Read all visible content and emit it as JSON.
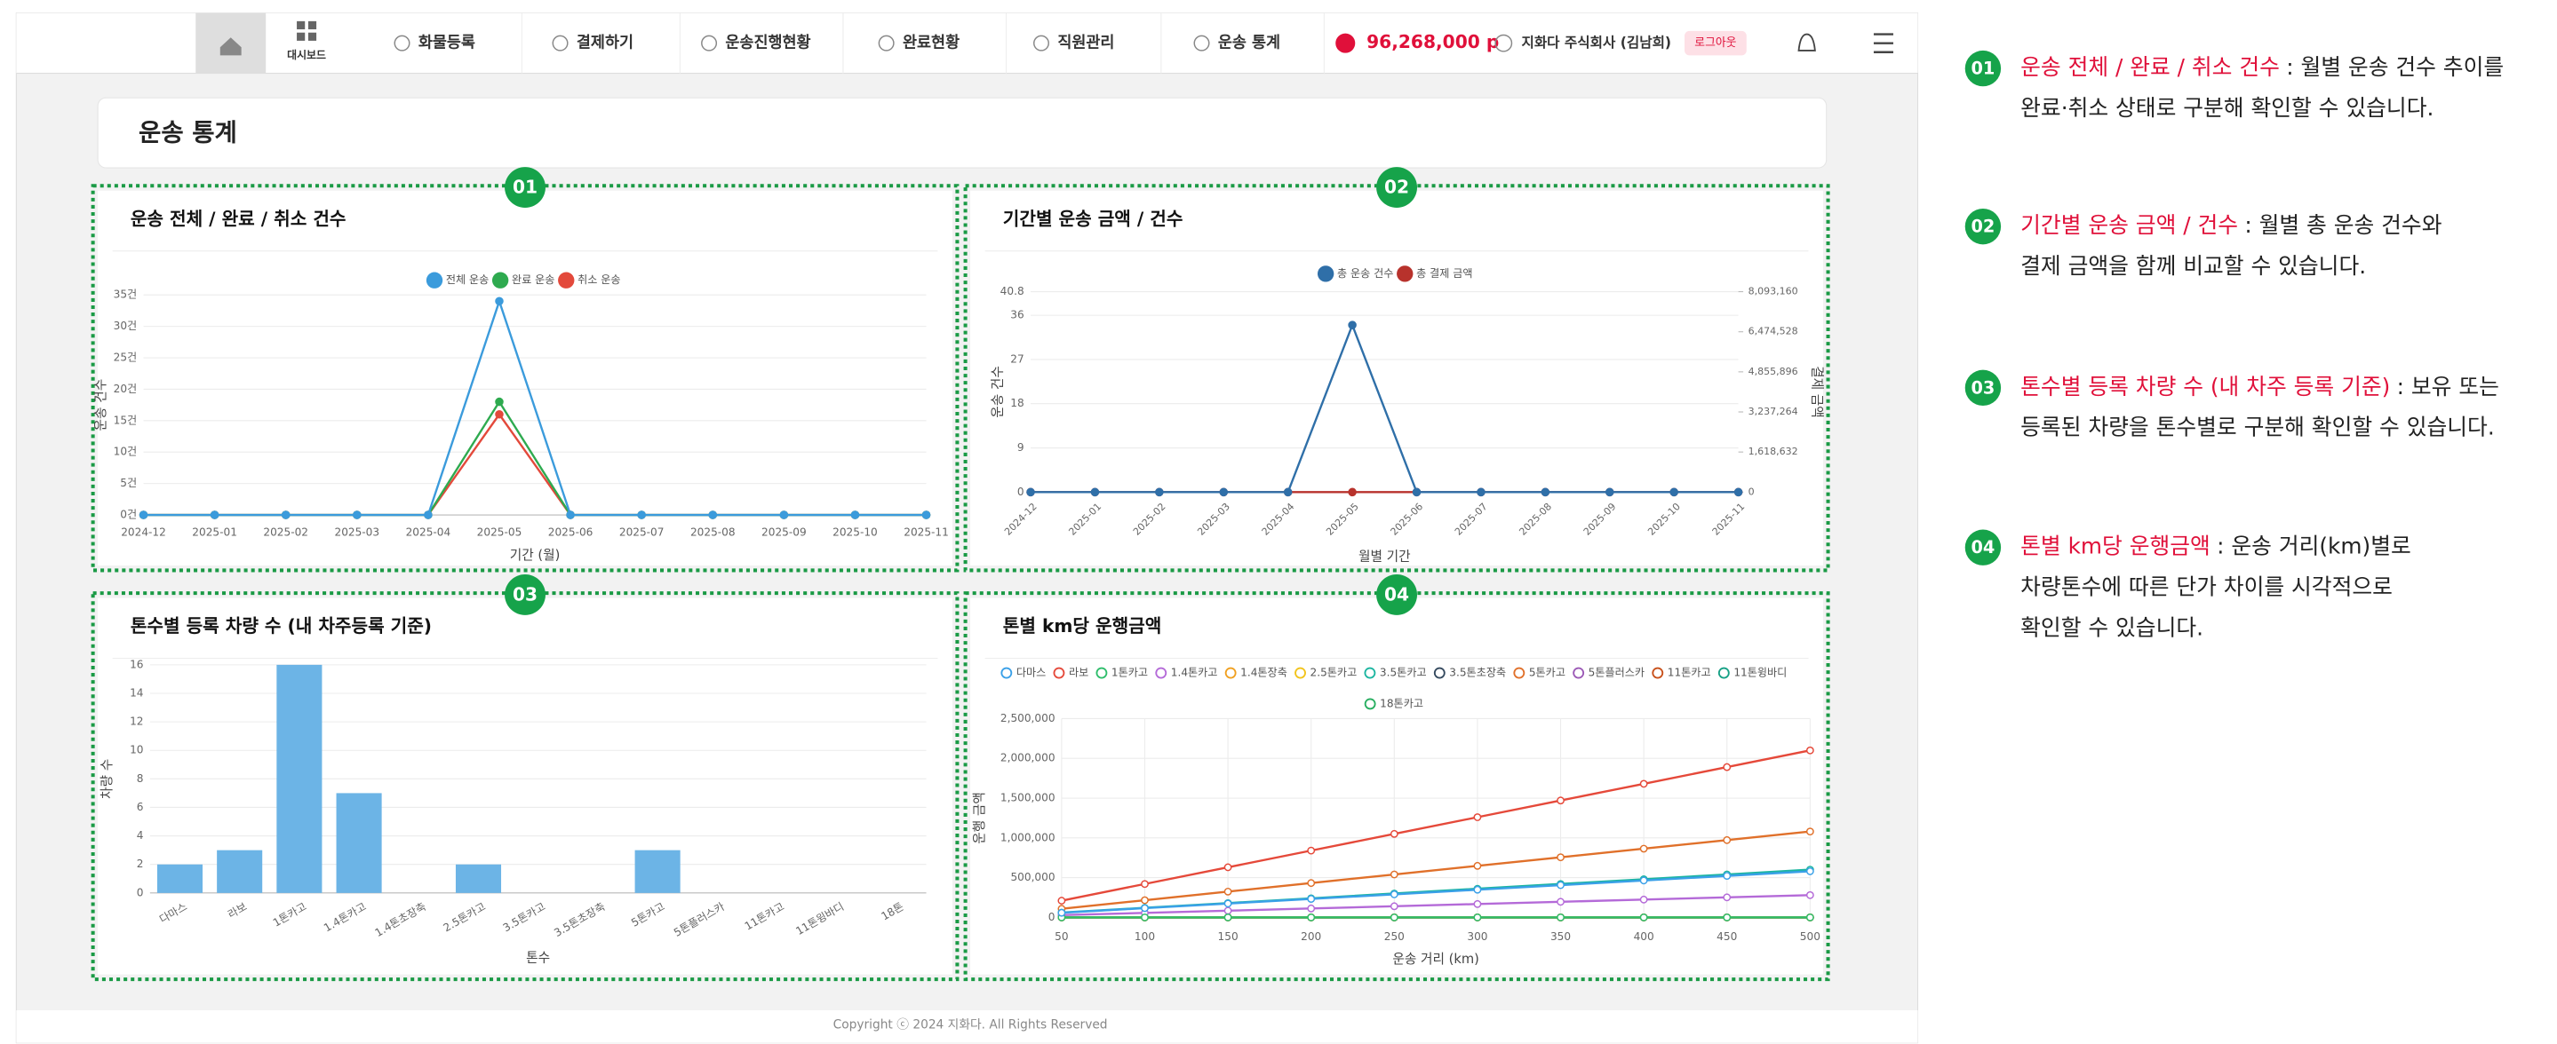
{
  "nav": {
    "items": [
      "대시보드",
      "화물등록",
      "결제하기",
      "운송진행현황",
      "완료현황",
      "직원관리",
      "운송 통계"
    ],
    "points": "96,268,000 p",
    "user": "지화다 주식회사 (김남희)",
    "logout": "로그아웃"
  },
  "page_title": "운송 통계",
  "chart_data": [
    {
      "type": "line",
      "badge": "01",
      "title": "운송 전체 / 완료 / 취소 건수",
      "categories": [
        "2024-12",
        "2025-01",
        "2025-02",
        "2025-03",
        "2025-04",
        "2025-05",
        "2025-06",
        "2025-07",
        "2025-08",
        "2025-09",
        "2025-10",
        "2025-11"
      ],
      "series": [
        {
          "name": "전체 운송",
          "color": "#3b9bdc",
          "values": [
            0,
            0,
            0,
            0,
            0,
            34,
            0,
            0,
            0,
            0,
            0,
            0
          ]
        },
        {
          "name": "완료 운송",
          "color": "#2eaa4f",
          "values": [
            0,
            0,
            0,
            0,
            0,
            18,
            0,
            0,
            0,
            0,
            0,
            0
          ]
        },
        {
          "name": "취소 운송",
          "color": "#e3493b",
          "values": [
            0,
            0,
            0,
            0,
            0,
            16,
            0,
            0,
            0,
            0,
            0,
            0
          ]
        }
      ],
      "ylim": [
        0,
        35
      ],
      "yticks": [
        {
          "value": 0,
          "label": "0건"
        },
        {
          "value": 5,
          "label": "5건"
        },
        {
          "value": 10,
          "label": "10건"
        },
        {
          "value": 15,
          "label": "15건"
        },
        {
          "value": 20,
          "label": "20건"
        },
        {
          "value": 25,
          "label": "25건"
        },
        {
          "value": 30,
          "label": "30건"
        },
        {
          "value": 35,
          "label": "35건"
        }
      ],
      "xlabel": "기간 (월)",
      "ylabel": "운송 건수",
      "grid": true
    },
    {
      "type": "line",
      "badge": "02",
      "title": "기간별 운송 금액 / 건수",
      "categories": [
        "2024-12",
        "2025-01",
        "2025-02",
        "2025-03",
        "2025-04",
        "2025-05",
        "2025-06",
        "2025-07",
        "2025-08",
        "2025-09",
        "2025-10",
        "2025-11"
      ],
      "series": [
        {
          "name": "총 운송 건수",
          "color": "#2f6fa8",
          "values": [
            0,
            0,
            0,
            0,
            0,
            34,
            0,
            0,
            0,
            0,
            0,
            0
          ]
        },
        {
          "name": "총 결제 금액",
          "color": "#b8322c",
          "axis": "y2",
          "values": [
            0,
            0,
            0,
            0,
            0,
            0,
            0,
            0,
            0,
            0,
            0,
            0
          ]
        }
      ],
      "ylim": [
        0,
        40.8
      ],
      "yticks": [
        0,
        9,
        18,
        27,
        36,
        40.8
      ],
      "y2lim": [
        0,
        8093160
      ],
      "y2ticks": [
        0,
        {
          "value": 1618632,
          "label": "1,618,632"
        },
        {
          "value": 3237264,
          "label": "3,237,264"
        },
        {
          "value": 4855896,
          "label": "4,855,896"
        },
        {
          "value": 6474528,
          "label": "6,474,528"
        },
        {
          "value": 8093160,
          "label": "8,093,160"
        }
      ],
      "xlabel": "월별 기간",
      "ylabel": "운송 건수",
      "y2label": "결제 금액",
      "grid": true
    },
    {
      "type": "bar",
      "badge": "03",
      "title": "톤수별 등록 차량 수 (내 차주등록 기준)",
      "categories": [
        "다마스",
        "라보",
        "1톤카고",
        "1.4톤카고",
        "1.4톤초장축",
        "2.5톤카고",
        "3.5톤카고",
        "3.5톤초장축",
        "5톤카고",
        "5톤플러스카",
        "11톤카고",
        "11톤윙바디",
        "18톤"
      ],
      "values": [
        2,
        3,
        16,
        7,
        0,
        2,
        0,
        0,
        3,
        0,
        0,
        0,
        0
      ],
      "color": "#6cb4e6",
      "ylim": [
        0,
        16
      ],
      "yticks": [
        0,
        2,
        4,
        6,
        8,
        10,
        12,
        14,
        16
      ],
      "xlabel": "톤수",
      "ylabel": "차량 수",
      "grid": true
    },
    {
      "type": "line",
      "badge": "04",
      "title": "톤별 km당 운행금액",
      "x": [
        50,
        100,
        150,
        200,
        250,
        300,
        350,
        400,
        450,
        500
      ],
      "series": [
        {
          "name": "다마스",
          "color": "#3aa0e8",
          "values": [
            58000,
            116000,
            174000,
            232000,
            290000,
            348000,
            406000,
            464000,
            522000,
            580000
          ]
        },
        {
          "name": "라보",
          "color": "#e5493a",
          "values": [
            210000,
            420000,
            630000,
            840000,
            1050000,
            1260000,
            1470000,
            1680000,
            1890000,
            2100000
          ]
        },
        {
          "name": "1톤카고",
          "color": "#2ebd6b",
          "values": [
            0,
            0,
            0,
            0,
            0,
            0,
            0,
            0,
            0,
            0
          ]
        },
        {
          "name": "1.4톤카고",
          "color": "#b46ad8",
          "values": [
            28000,
            56000,
            84000,
            112000,
            140000,
            168000,
            196000,
            224000,
            252000,
            280000
          ]
        },
        {
          "name": "1.4톤장축",
          "color": "#f0a020",
          "values": [
            0,
            0,
            0,
            0,
            0,
            0,
            0,
            0,
            0,
            0
          ]
        },
        {
          "name": "2.5톤카고",
          "color": "#f2c31a",
          "values": [
            0,
            0,
            0,
            0,
            0,
            0,
            0,
            0,
            0,
            0
          ]
        },
        {
          "name": "3.5톤카고",
          "color": "#1bb5a0",
          "values": [
            60000,
            120000,
            180000,
            240000,
            300000,
            360000,
            420000,
            480000,
            540000,
            600000
          ]
        },
        {
          "name": "3.5톤초장축",
          "color": "#34495e",
          "values": [
            0,
            0,
            0,
            0,
            0,
            0,
            0,
            0,
            0,
            0
          ]
        },
        {
          "name": "5톤카고",
          "color": "#e0702a",
          "values": [
            108000,
            216000,
            324000,
            432000,
            540000,
            648000,
            756000,
            864000,
            972000,
            1080000
          ]
        },
        {
          "name": "5톤플러스카",
          "color": "#9b59b6",
          "values": [
            0,
            0,
            0,
            0,
            0,
            0,
            0,
            0,
            0,
            0
          ]
        },
        {
          "name": "11톤카고",
          "color": "#c8501a",
          "values": [
            0,
            0,
            0,
            0,
            0,
            0,
            0,
            0,
            0,
            0
          ]
        },
        {
          "name": "11톤윙바디",
          "color": "#16a085",
          "values": [
            0,
            0,
            0,
            0,
            0,
            0,
            0,
            0,
            0,
            0
          ]
        },
        {
          "name": "18톤카고",
          "color": "#27ae60",
          "values": [
            0,
            0,
            0,
            0,
            0,
            0,
            0,
            0,
            0,
            0
          ]
        }
      ],
      "xlim": [
        50,
        500
      ],
      "xticks": [
        50,
        100,
        150,
        200,
        250,
        300,
        350,
        400,
        450,
        500
      ],
      "ylim": [
        0,
        2500000
      ],
      "yticks": [
        0,
        {
          "value": 500000,
          "label": "500,000"
        },
        {
          "value": 1000000,
          "label": "1,000,000"
        },
        {
          "value": 1500000,
          "label": "1,500,000"
        },
        {
          "value": 2000000,
          "label": "2,000,000"
        },
        {
          "value": 2500000,
          "label": "2,500,000"
        }
      ],
      "xlabel": "운송 거리 (km)",
      "ylabel": "운행 금액",
      "grid": true,
      "hollow_markers": true
    }
  ],
  "annotations": [
    {
      "num": "01",
      "highlight": "운송 전체 / 완료 / 취소 건수",
      "text": ": 월별 운송 건수 추이를",
      "lines": [
        "완료·취소 상태로 구분해 확인할 수 있습니다."
      ]
    },
    {
      "num": "02",
      "highlight": "기간별 운송 금액 / 건수",
      "text": ": 월별 총 운송 건수와",
      "lines": [
        "결제 금액을 함께 비교할 수 있습니다."
      ]
    },
    {
      "num": "03",
      "highlight": "톤수별 등록 차량 수 (내 차주 등록 기준)",
      "text": ": 보유 또는",
      "lines": [
        "등록된 차량을 톤수별로 구분해 확인할 수 있습니다."
      ]
    },
    {
      "num": "04",
      "highlight": "톤별 km당 운행금액",
      "text": ": 운송 거리(km)별로",
      "lines": [
        "차량톤수에 따른 단가 차이를 시각적으로",
        "확인할 수 있습니다."
      ]
    }
  ],
  "footer": "Copyright ⓒ 2024 지화다. All Rights Reserved"
}
